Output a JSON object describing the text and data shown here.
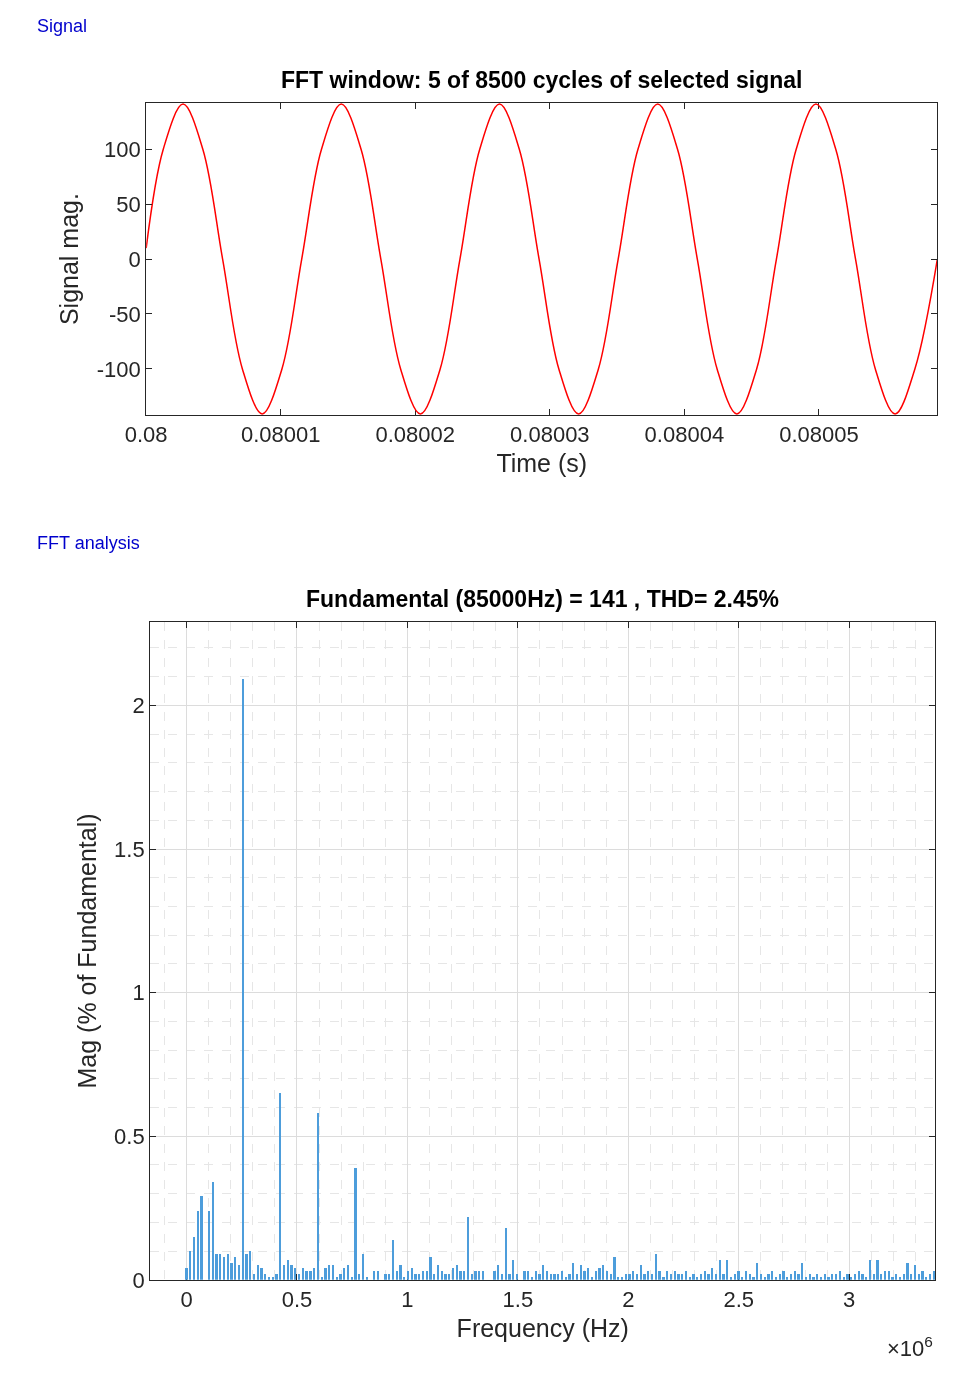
{
  "chart_data": [
    {
      "type": "line",
      "title": "FFT window: 5 of 8500 cycles of selected signal",
      "xlabel": "Time (s)",
      "ylabel": "Signal mag.",
      "annotations": [
        "Signal"
      ],
      "x": [
        0.08,
        0.08000127,
        0.08000274,
        0.08000421,
        0.08000568,
        0.08000715,
        0.08000862,
        0.08001009,
        0.08001156,
        0.08001303,
        0.0800145,
        0.08001597,
        0.08001744,
        0.08001891,
        0.08002038,
        0.08002185,
        0.08002332,
        0.08002479,
        0.08002626,
        0.08002773,
        0.0800292,
        0.08003067,
        0.08003214,
        0.08003361,
        0.08003508,
        0.08003655,
        0.08003802,
        0.08003949,
        0.08004096,
        0.08004243,
        0.0800439,
        0.08004537,
        0.08004684,
        0.08004831,
        0.08004978,
        0.08005125,
        0.08005272,
        0.08005419,
        0.08005566,
        0.08005713,
        0.0800588
      ],
      "series": [
        {
          "color": "#ff0000",
          "values": [
            10,
            100,
            141,
            100,
            0,
            -100,
            -141,
            -100,
            0,
            100,
            141,
            100,
            0,
            -100,
            -141,
            -100,
            0,
            100,
            141,
            100,
            0,
            -100,
            -141,
            -100,
            0,
            100,
            141,
            100,
            0,
            -100,
            -141,
            -100,
            0,
            100,
            141,
            100,
            0,
            -100,
            -141,
            -100,
            0
          ]
        }
      ],
      "xlim": [
        0.08,
        0.0800588
      ],
      "ylim": [
        -142,
        142
      ],
      "xticks": [
        0.08,
        0.08001,
        0.08002,
        0.08003,
        0.08004,
        0.08005
      ],
      "yticks": [
        -100,
        -50,
        0,
        50,
        100
      ],
      "grid": false
    },
    {
      "type": "bar",
      "title": "Fundamental (85000Hz) = 141 , THD= 2.45%",
      "xlabel": "Frequency (Hz)",
      "ylabel": "Mag (% of Fundamental)",
      "annotations": [
        "FFT analysis",
        "×10$^{6}$"
      ],
      "x": [
        0,
        0.017,
        0.034,
        0.051,
        0.068,
        0.085,
        0.102,
        0.119,
        0.136,
        0.153,
        0.17,
        0.187,
        0.204,
        0.221,
        0.238,
        0.255,
        0.272,
        0.289,
        0.306,
        0.323,
        0.34,
        0.357,
        0.374,
        0.391,
        0.408,
        0.425,
        0.442,
        0.459,
        0.476,
        0.493,
        0.51,
        0.527,
        0.544,
        0.561,
        0.578,
        0.595,
        0.612,
        0.629,
        0.646,
        0.663,
        0.68,
        0.697,
        0.714,
        0.731,
        0.748,
        0.765,
        0.782,
        0.799,
        0.816,
        0.833,
        0.85,
        0.867,
        0.884,
        0.901,
        0.918,
        0.935,
        0.952,
        0.969,
        0.986,
        1.003,
        1.02,
        1.037,
        1.054,
        1.071,
        1.088,
        1.105,
        1.122,
        1.139,
        1.156,
        1.173,
        1.19,
        1.207,
        1.224,
        1.241,
        1.258,
        1.275,
        1.292,
        1.309,
        1.326,
        1.343,
        1.36,
        1.377,
        1.394,
        1.411,
        1.428,
        1.445,
        1.462,
        1.479,
        1.496,
        1.513,
        1.53,
        1.547,
        1.564,
        1.581,
        1.598,
        1.615,
        1.632,
        1.649,
        1.666,
        1.683,
        1.7,
        1.717,
        1.734,
        1.751,
        1.768,
        1.785,
        1.802,
        1.819,
        1.836,
        1.853,
        1.87,
        1.887,
        1.904,
        1.921,
        1.938,
        1.955,
        1.972,
        1.989,
        2.006,
        2.023,
        2.04,
        2.057,
        2.074,
        2.091,
        2.108,
        2.125,
        2.142,
        2.159,
        2.176,
        2.193,
        2.21,
        2.227,
        2.244,
        2.261,
        2.278,
        2.295,
        2.312,
        2.329,
        2.346,
        2.363,
        2.38,
        2.397,
        2.414,
        2.431,
        2.448,
        2.465,
        2.482,
        2.499,
        2.516,
        2.533,
        2.55,
        2.567,
        2.584,
        2.601,
        2.618,
        2.635,
        2.652,
        2.669,
        2.686,
        2.703,
        2.72,
        2.737,
        2.754,
        2.771,
        2.788,
        2.805,
        2.822,
        2.839,
        2.856,
        2.873,
        2.89,
        2.907,
        2.924,
        2.941,
        2.958,
        2.975,
        2.992,
        3.009,
        3.026,
        3.043,
        3.06,
        3.077,
        3.094,
        3.111,
        3.128,
        3.145,
        3.162,
        3.179,
        3.196,
        3.213,
        3.23,
        3.247,
        3.264,
        3.281,
        3.298,
        3.315,
        3.332,
        3.349,
        3.366,
        3.383
      ],
      "values": [
        0.04,
        0.1,
        0.15,
        0.24,
        0.29,
        null,
        0.24,
        0.34,
        0.09,
        0.09,
        0.08,
        0.09,
        0.06,
        0.08,
        0.05,
        2.09,
        0.09,
        0.1,
        0.02,
        0.05,
        0.04,
        0.02,
        0.01,
        0.01,
        0.02,
        0.65,
        0.05,
        0.07,
        0.05,
        0.04,
        0.02,
        0.04,
        0.03,
        0.03,
        0.04,
        0.58,
        0.01,
        0.04,
        0.05,
        0.05,
        0.01,
        0.02,
        0.04,
        0.05,
        0.01,
        0.39,
        0.02,
        0.09,
        0.01,
        0.0,
        0.03,
        0.03,
        0.0,
        0.02,
        0.02,
        0.14,
        0.03,
        0.05,
        0.01,
        0.03,
        0.04,
        0.02,
        0.02,
        0.03,
        0.03,
        0.08,
        0.02,
        0.05,
        0.03,
        0.02,
        0.02,
        0.04,
        0.05,
        0.03,
        0.03,
        0.22,
        0.02,
        0.03,
        0.03,
        0.03,
        0.0,
        0.0,
        0.03,
        0.05,
        0.02,
        0.18,
        0.02,
        0.07,
        0.02,
        0.0,
        0.03,
        0.03,
        0.01,
        0.03,
        0.02,
        0.05,
        0.03,
        0.02,
        0.02,
        0.02,
        0.03,
        0.01,
        0.02,
        0.06,
        0.02,
        0.05,
        0.03,
        0.04,
        0.01,
        0.03,
        0.04,
        0.05,
        0.03,
        0.02,
        0.08,
        0.01,
        0.01,
        0.02,
        0.02,
        0.03,
        0.02,
        0.05,
        0.02,
        0.03,
        0.02,
        0.09,
        0.03,
        0.01,
        0.03,
        0.02,
        0.03,
        0.02,
        0.02,
        0.03,
        0.01,
        0.02,
        0.01,
        0.02,
        0.03,
        0.02,
        0.04,
        0.02,
        0.07,
        0.02,
        0.07,
        0.01,
        0.02,
        0.03,
        0.01,
        0.03,
        0.02,
        0.01,
        0.06,
        0.02,
        0.01,
        0.02,
        0.03,
        0.01,
        0.02,
        0.03,
        0.01,
        0.02,
        0.03,
        0.02,
        0.06,
        0.01,
        0.02,
        0.01,
        0.02,
        0.01,
        0.02,
        0.01,
        0.02,
        0.02,
        0.03,
        0.01,
        0.02,
        0.01,
        0.02,
        0.03,
        0.02,
        0.01,
        0.07,
        0.02,
        0.07,
        0.02,
        0.03,
        0.03,
        0.01,
        0.02,
        0.01,
        0.02,
        0.06,
        0.02,
        0.05,
        0.02,
        0.03,
        0.01,
        0.02,
        0.03
      ],
      "color": "#4d9ddb",
      "xlim": [
        -0.165,
        3.39
      ],
      "ylim": [
        0,
        2.29
      ],
      "xticks": [
        0,
        0.5,
        1,
        1.5,
        2,
        2.5,
        3
      ],
      "yticks": [
        0,
        0.5,
        1,
        1.5,
        2
      ],
      "grid": true
    }
  ]
}
